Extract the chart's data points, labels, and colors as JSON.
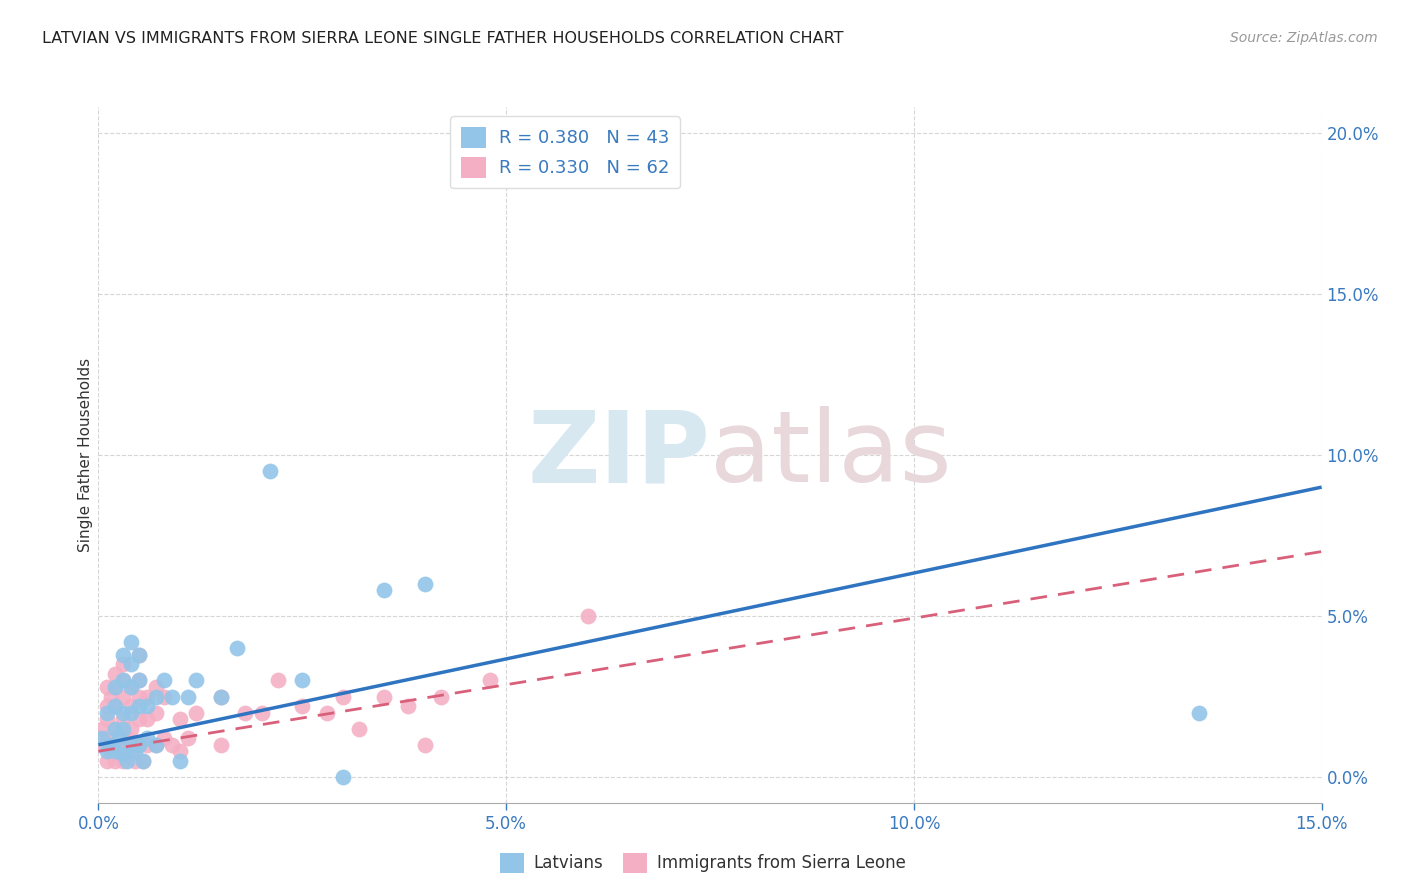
{
  "title": "LATVIAN VS IMMIGRANTS FROM SIERRA LEONE SINGLE FATHER HOUSEHOLDS CORRELATION CHART",
  "source": "Source: ZipAtlas.com",
  "ylabel": "Single Father Households",
  "xlim": [
    0.0,
    0.15
  ],
  "ylim": [
    -0.008,
    0.208
  ],
  "latvian_R": 0.38,
  "latvian_N": 43,
  "sierra_leone_R": 0.33,
  "sierra_leone_N": 62,
  "blue_color": "#92c5e8",
  "pink_color": "#f4afc5",
  "blue_line_color": "#2f74c0",
  "pink_line_color": "#d9607a",
  "legend_label_1": "Latvians",
  "legend_label_2": "Immigrants from Sierra Leone",
  "watermark_zip": "ZIP",
  "watermark_atlas": "atlas",
  "blue_line_y0": 0.01,
  "blue_line_y1": 0.09,
  "pink_line_y0": 0.008,
  "pink_line_y1": 0.07,
  "latvian_x": [
    0.0005,
    0.001,
    0.001,
    0.0015,
    0.002,
    0.002,
    0.002,
    0.002,
    0.0025,
    0.003,
    0.003,
    0.003,
    0.003,
    0.003,
    0.0035,
    0.004,
    0.004,
    0.004,
    0.004,
    0.004,
    0.0045,
    0.005,
    0.005,
    0.005,
    0.005,
    0.0055,
    0.006,
    0.006,
    0.007,
    0.007,
    0.008,
    0.009,
    0.01,
    0.011,
    0.012,
    0.015,
    0.017,
    0.021,
    0.025,
    0.03,
    0.035,
    0.04,
    0.135
  ],
  "latvian_y": [
    0.012,
    0.008,
    0.02,
    0.01,
    0.008,
    0.015,
    0.022,
    0.028,
    0.012,
    0.007,
    0.015,
    0.02,
    0.03,
    0.038,
    0.005,
    0.01,
    0.02,
    0.028,
    0.035,
    0.042,
    0.008,
    0.01,
    0.022,
    0.03,
    0.038,
    0.005,
    0.012,
    0.022,
    0.01,
    0.025,
    0.03,
    0.025,
    0.005,
    0.025,
    0.03,
    0.025,
    0.04,
    0.095,
    0.03,
    0.0,
    0.058,
    0.06,
    0.02
  ],
  "sierra_leone_x": [
    0.0003,
    0.0005,
    0.001,
    0.001,
    0.001,
    0.001,
    0.001,
    0.0015,
    0.0015,
    0.002,
    0.002,
    0.002,
    0.002,
    0.002,
    0.002,
    0.0025,
    0.003,
    0.003,
    0.003,
    0.003,
    0.003,
    0.003,
    0.0035,
    0.004,
    0.004,
    0.004,
    0.004,
    0.0045,
    0.005,
    0.005,
    0.005,
    0.005,
    0.005,
    0.0055,
    0.006,
    0.006,
    0.006,
    0.007,
    0.007,
    0.007,
    0.008,
    0.008,
    0.009,
    0.01,
    0.01,
    0.011,
    0.012,
    0.015,
    0.015,
    0.018,
    0.02,
    0.022,
    0.025,
    0.028,
    0.03,
    0.032,
    0.035,
    0.038,
    0.04,
    0.042,
    0.048,
    0.06
  ],
  "sierra_leone_y": [
    0.01,
    0.015,
    0.005,
    0.012,
    0.018,
    0.022,
    0.028,
    0.008,
    0.025,
    0.005,
    0.01,
    0.015,
    0.022,
    0.028,
    0.032,
    0.008,
    0.005,
    0.01,
    0.018,
    0.025,
    0.03,
    0.035,
    0.012,
    0.008,
    0.015,
    0.022,
    0.028,
    0.005,
    0.01,
    0.018,
    0.025,
    0.03,
    0.038,
    0.005,
    0.01,
    0.018,
    0.025,
    0.01,
    0.02,
    0.028,
    0.012,
    0.025,
    0.01,
    0.008,
    0.018,
    0.012,
    0.02,
    0.01,
    0.025,
    0.02,
    0.02,
    0.03,
    0.022,
    0.02,
    0.025,
    0.015,
    0.025,
    0.022,
    0.01,
    0.025,
    0.03,
    0.05
  ]
}
